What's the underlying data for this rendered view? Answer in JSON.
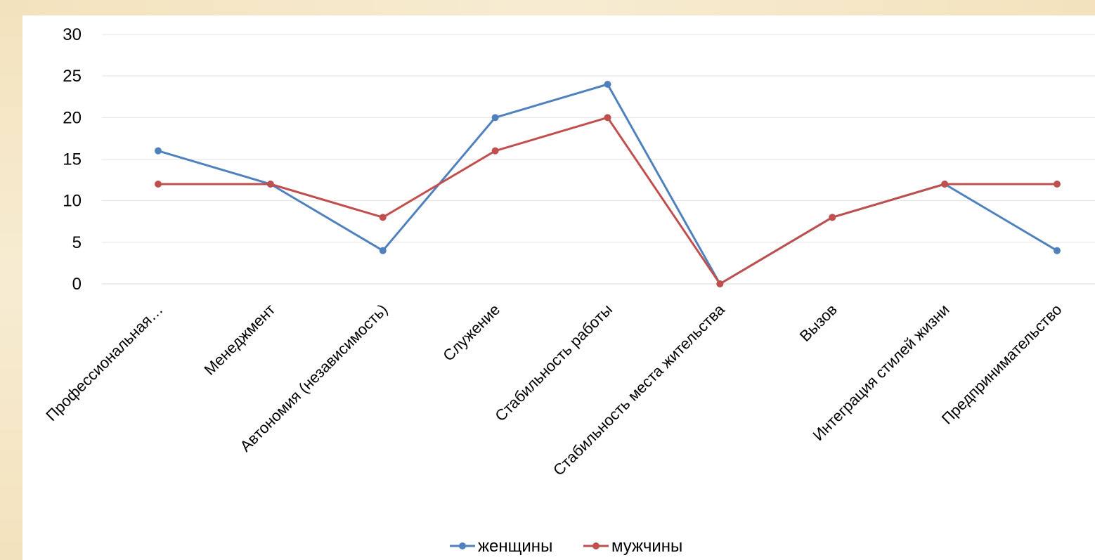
{
  "chart_data": {
    "type": "line",
    "title": "",
    "xlabel": "",
    "ylabel": "",
    "ylim": [
      0,
      30
    ],
    "yticks": [
      0,
      5,
      10,
      15,
      20,
      25,
      30
    ],
    "grid": true,
    "legend_position": "bottom",
    "categories": [
      "Профессиональная…",
      "Менеджмент",
      "Автономия (независимость)",
      "Служение",
      "Стабильность работы",
      "Стабильность места жительства",
      "Вызов",
      "Интеграция стилей жизни",
      "Предпринимательство"
    ],
    "series": [
      {
        "name": "женщины",
        "color": "#4f81bd",
        "values": [
          16,
          12,
          4,
          20,
          24,
          0,
          8,
          12,
          4
        ]
      },
      {
        "name": "мужчины",
        "color": "#c0504d",
        "values": [
          12,
          12,
          8,
          16,
          20,
          0,
          8,
          12,
          12
        ]
      }
    ]
  }
}
